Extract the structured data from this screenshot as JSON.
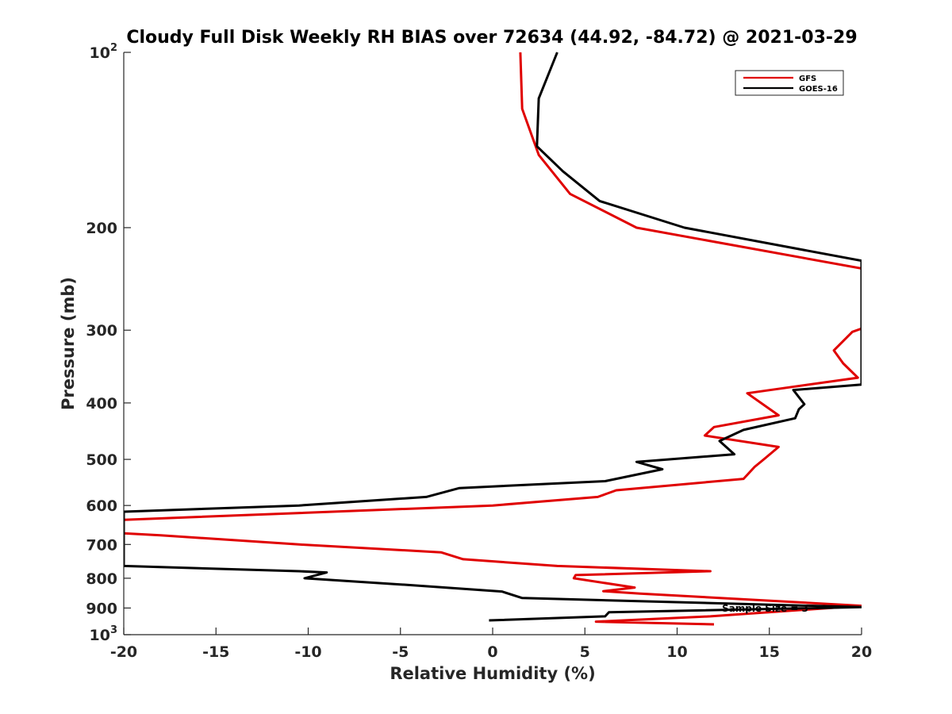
{
  "chart_data": {
    "type": "line",
    "title": "Cloudy Full Disk Weekly RH BIAS over 72634 (44.92, -84.72) @ 2021-03-29",
    "xlabel": "Relative Humidity (%)",
    "ylabel": "Pressure (mb)",
    "xlim": [
      -20,
      20
    ],
    "ylim": [
      100,
      1000
    ],
    "y_scale": "log",
    "y_reversed": true,
    "grid": false,
    "legend_position": "top-right",
    "x_ticks": [
      "-20",
      "-15",
      "-10",
      "-5",
      "0",
      "5",
      "10",
      "15",
      "20"
    ],
    "y_ticks": [
      {
        "value": 100,
        "label": "10",
        "sup": "2"
      },
      {
        "value": 200,
        "label": "200"
      },
      {
        "value": 300,
        "label": "300"
      },
      {
        "value": 400,
        "label": "400"
      },
      {
        "value": 500,
        "label": "500"
      },
      {
        "value": 600,
        "label": "600"
      },
      {
        "value": 700,
        "label": "700"
      },
      {
        "value": 800,
        "label": "800"
      },
      {
        "value": 900,
        "label": "900"
      },
      {
        "value": 1000,
        "label": "10",
        "sup": "3"
      }
    ],
    "series": [
      {
        "name": "GFS",
        "color": "#e00000",
        "points": [
          [
            1.5,
            100
          ],
          [
            1.6,
            125
          ],
          [
            2.5,
            150
          ],
          [
            4.2,
            175
          ],
          [
            7.8,
            200
          ],
          [
            20,
            235
          ],
          [
            20,
            298
          ],
          [
            19.5,
            302
          ],
          [
            18.5,
            325
          ],
          [
            19,
            342
          ],
          [
            19.8,
            362
          ],
          [
            13.8,
            385
          ],
          [
            15.5,
            420
          ],
          [
            12,
            440
          ],
          [
            11.5,
            455
          ],
          [
            15.5,
            476
          ],
          [
            14.7,
            500
          ],
          [
            14.2,
            515
          ],
          [
            13.6,
            540
          ],
          [
            6.7,
            565
          ],
          [
            5.7,
            580
          ],
          [
            0,
            600
          ],
          [
            -20,
            635
          ],
          [
            -20,
            670
          ],
          [
            -18,
            675
          ],
          [
            -10.5,
            700
          ],
          [
            -2.8,
            722
          ],
          [
            -1.6,
            742
          ],
          [
            3.5,
            762
          ],
          [
            11.8,
            778
          ],
          [
            4.5,
            790
          ],
          [
            4.4,
            800
          ],
          [
            7.7,
            830
          ],
          [
            6,
            842
          ],
          [
            8,
            850
          ],
          [
            20,
            892
          ],
          [
            11.8,
            930
          ],
          [
            5.6,
            950
          ],
          [
            12,
            960
          ]
        ]
      },
      {
        "name": "GOES-16",
        "color": "#000000",
        "points": [
          [
            3.5,
            100
          ],
          [
            2.5,
            120
          ],
          [
            2.4,
            145
          ],
          [
            3.8,
            160
          ],
          [
            5.8,
            180
          ],
          [
            10.4,
            200
          ],
          [
            20,
            228
          ],
          [
            20,
            372
          ],
          [
            16.3,
            380
          ],
          [
            16.9,
            402
          ],
          [
            16.6,
            410
          ],
          [
            16.4,
            425
          ],
          [
            13.6,
            445
          ],
          [
            12.3,
            465
          ],
          [
            13.1,
            490
          ],
          [
            7.8,
            505
          ],
          [
            9.2,
            520
          ],
          [
            6.1,
            545
          ],
          [
            -1.8,
            560
          ],
          [
            -3.6,
            580
          ],
          [
            -10.5,
            600
          ],
          [
            -20,
            615
          ],
          [
            -20,
            762
          ],
          [
            -10.5,
            778
          ],
          [
            -9,
            782
          ],
          [
            -10.2,
            800
          ],
          [
            -5,
            820
          ],
          [
            0.5,
            843
          ],
          [
            1.6,
            865
          ],
          [
            20,
            897
          ],
          [
            6.3,
            915
          ],
          [
            6.1,
            930
          ],
          [
            -0.2,
            945
          ]
        ]
      }
    ],
    "annotations": [
      {
        "text": "Sample Size = 3"
      }
    ]
  }
}
